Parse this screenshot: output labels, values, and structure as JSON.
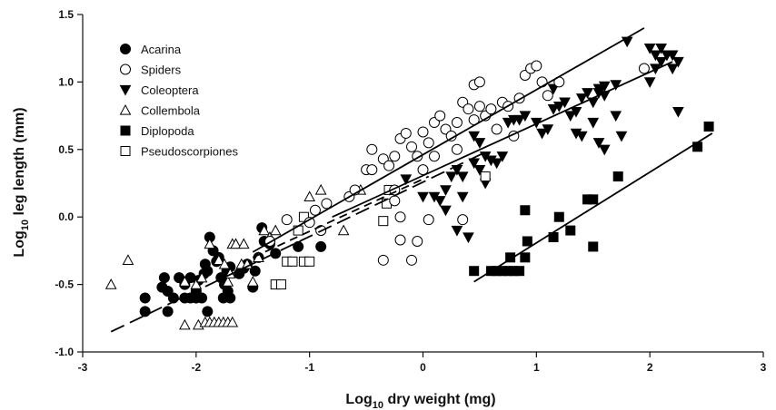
{
  "chart_data": {
    "type": "scatter",
    "title": "",
    "xlabel_main": "Log",
    "xlabel_sub": "10",
    "xlabel_rest": " dry weight (mg)",
    "ylabel_main": "Log",
    "ylabel_sub": "10",
    "ylabel_rest": " leg length (mm)",
    "xlim": [
      -3,
      3
    ],
    "ylim": [
      -1.0,
      1.5
    ],
    "x_ticks": [
      -3,
      -2,
      -1,
      0,
      1,
      2,
      3
    ],
    "x_tick_labels": [
      "-3",
      "-2",
      "-1",
      "0",
      "1",
      "2",
      "3"
    ],
    "y_ticks": [
      -1.0,
      -0.5,
      0.0,
      0.5,
      1.0,
      1.5
    ],
    "y_tick_labels": [
      "-1.0",
      "-0.5",
      "0.0",
      "0.5",
      "1.0",
      "1.5"
    ],
    "grid": false,
    "legend_position": "top-left",
    "series": [
      {
        "name": "Acarina",
        "marker": "filled-circle",
        "points": [
          [
            -2.45,
            -0.6
          ],
          [
            -2.45,
            -0.7
          ],
          [
            -2.3,
            -0.52
          ],
          [
            -2.28,
            -0.45
          ],
          [
            -2.25,
            -0.55
          ],
          [
            -2.25,
            -0.7
          ],
          [
            -2.2,
            -0.6
          ],
          [
            -2.15,
            -0.45
          ],
          [
            -2.1,
            -0.5
          ],
          [
            -2.1,
            -0.6
          ],
          [
            -2.05,
            -0.45
          ],
          [
            -2.0,
            -0.55
          ],
          [
            -1.98,
            -0.47
          ],
          [
            -1.95,
            -0.6
          ],
          [
            -1.93,
            -0.42
          ],
          [
            -1.92,
            -0.35
          ],
          [
            -1.9,
            -0.4
          ],
          [
            -1.88,
            -0.15
          ],
          [
            -1.85,
            -0.25
          ],
          [
            -1.82,
            -0.33
          ],
          [
            -1.8,
            -0.3
          ],
          [
            -1.78,
            -0.45
          ],
          [
            -1.76,
            -0.6
          ],
          [
            -1.75,
            -0.5
          ],
          [
            -1.73,
            -0.4
          ],
          [
            -1.72,
            -0.55
          ],
          [
            -1.7,
            -0.37
          ],
          [
            -1.7,
            -0.6
          ],
          [
            -1.9,
            -0.7
          ],
          [
            -2.0,
            -0.6
          ],
          [
            -2.05,
            -0.6
          ],
          [
            -1.62,
            -0.42
          ],
          [
            -1.58,
            -0.38
          ],
          [
            -1.55,
            -0.35
          ],
          [
            -1.5,
            -0.52
          ],
          [
            -1.48,
            -0.4
          ],
          [
            -1.45,
            -0.3
          ],
          [
            -1.42,
            -0.08
          ],
          [
            -1.4,
            -0.18
          ],
          [
            -1.35,
            -0.2
          ],
          [
            -1.3,
            -0.27
          ],
          [
            -1.1,
            -0.22
          ],
          [
            -0.9,
            -0.22
          ]
        ]
      },
      {
        "name": "Spiders",
        "marker": "open-circle",
        "points": [
          [
            -1.35,
            -0.18
          ],
          [
            -1.2,
            -0.02
          ],
          [
            -1.0,
            -0.04
          ],
          [
            -0.95,
            0.05
          ],
          [
            -0.9,
            -0.1
          ],
          [
            -0.85,
            0.1
          ],
          [
            -0.65,
            0.15
          ],
          [
            -0.6,
            0.2
          ],
          [
            -0.5,
            0.35
          ],
          [
            -0.45,
            0.35
          ],
          [
            -0.45,
            0.5
          ],
          [
            -0.35,
            0.43
          ],
          [
            -0.3,
            0.38
          ],
          [
            -0.25,
            0.45
          ],
          [
            -0.2,
            0.58
          ],
          [
            -0.15,
            0.62
          ],
          [
            -0.1,
            0.52
          ],
          [
            -0.05,
            0.45
          ],
          [
            0.0,
            0.63
          ],
          [
            0.05,
            0.55
          ],
          [
            0.1,
            0.7
          ],
          [
            0.15,
            0.75
          ],
          [
            0.2,
            0.65
          ],
          [
            0.25,
            0.6
          ],
          [
            0.3,
            0.7
          ],
          [
            0.35,
            0.85
          ],
          [
            0.4,
            0.8
          ],
          [
            0.45,
            0.72
          ],
          [
            0.5,
            0.82
          ],
          [
            0.55,
            0.75
          ],
          [
            0.45,
            0.98
          ],
          [
            0.5,
            1.0
          ],
          [
            0.6,
            0.8
          ],
          [
            0.65,
            0.65
          ],
          [
            0.7,
            0.85
          ],
          [
            0.75,
            0.82
          ],
          [
            0.8,
            0.6
          ],
          [
            0.85,
            0.88
          ],
          [
            0.9,
            1.05
          ],
          [
            0.95,
            1.1
          ],
          [
            1.0,
            1.12
          ],
          [
            1.05,
            1.0
          ],
          [
            1.1,
            0.9
          ],
          [
            1.2,
            1.0
          ],
          [
            1.95,
            1.1
          ],
          [
            -0.35,
            -0.32
          ],
          [
            -0.2,
            -0.17
          ],
          [
            -0.1,
            -0.32
          ],
          [
            -0.05,
            -0.18
          ],
          [
            0.05,
            -0.02
          ],
          [
            0.35,
            -0.02
          ],
          [
            0.0,
            0.35
          ],
          [
            -0.25,
            0.12
          ],
          [
            -0.2,
            0.0
          ],
          [
            -0.25,
            0.2
          ],
          [
            0.1,
            0.45
          ],
          [
            0.3,
            0.5
          ]
        ]
      },
      {
        "name": "Coleoptera",
        "marker": "filled-triangle-down",
        "points": [
          [
            -0.15,
            0.28
          ],
          [
            0.0,
            0.15
          ],
          [
            0.15,
            0.12
          ],
          [
            0.2,
            0.05
          ],
          [
            0.25,
            0.3
          ],
          [
            0.3,
            0.35
          ],
          [
            0.35,
            0.15
          ],
          [
            0.4,
            -0.15
          ],
          [
            0.45,
            0.6
          ],
          [
            0.5,
            0.55
          ],
          [
            0.55,
            0.45
          ],
          [
            0.6,
            0.42
          ],
          [
            0.65,
            0.4
          ],
          [
            0.7,
            0.45
          ],
          [
            0.75,
            0.7
          ],
          [
            0.8,
            0.72
          ],
          [
            0.85,
            0.72
          ],
          [
            0.9,
            0.75
          ],
          [
            1.0,
            0.7
          ],
          [
            1.05,
            0.62
          ],
          [
            1.1,
            0.65
          ],
          [
            1.15,
            0.8
          ],
          [
            1.2,
            0.82
          ],
          [
            1.25,
            0.85
          ],
          [
            1.3,
            0.75
          ],
          [
            1.35,
            0.78
          ],
          [
            1.4,
            0.88
          ],
          [
            1.45,
            0.92
          ],
          [
            1.5,
            0.85
          ],
          [
            1.55,
            0.92
          ],
          [
            1.6,
            0.9
          ],
          [
            1.35,
            0.62
          ],
          [
            1.4,
            0.6
          ],
          [
            1.5,
            0.7
          ],
          [
            1.55,
            0.55
          ],
          [
            1.6,
            0.5
          ],
          [
            1.7,
            0.75
          ],
          [
            1.75,
            0.6
          ],
          [
            1.55,
            0.95
          ],
          [
            1.6,
            0.97
          ],
          [
            1.7,
            0.98
          ],
          [
            1.8,
            1.3
          ],
          [
            2.0,
            1.0
          ],
          [
            2.05,
            1.1
          ],
          [
            2.1,
            1.15
          ],
          [
            2.15,
            1.2
          ],
          [
            2.2,
            1.2
          ],
          [
            2.25,
            1.15
          ],
          [
            2.0,
            1.25
          ],
          [
            2.05,
            1.2
          ],
          [
            2.1,
            1.25
          ],
          [
            2.15,
            1.2
          ],
          [
            2.2,
            1.1
          ],
          [
            2.25,
            0.78
          ],
          [
            1.15,
            0.95
          ],
          [
            0.1,
            0.15
          ],
          [
            0.2,
            0.2
          ],
          [
            0.35,
            0.3
          ],
          [
            0.5,
            0.35
          ],
          [
            0.55,
            0.25
          ],
          [
            0.45,
            0.4
          ],
          [
            0.3,
            -0.1
          ]
        ]
      },
      {
        "name": "Collembola",
        "marker": "open-triangle-up",
        "points": [
          [
            -2.75,
            -0.5
          ],
          [
            -2.6,
            -0.32
          ],
          [
            -2.1,
            -0.48
          ],
          [
            -2.0,
            -0.5
          ],
          [
            -1.95,
            -0.45
          ],
          [
            -1.88,
            -0.2
          ],
          [
            -1.8,
            -0.32
          ],
          [
            -1.75,
            -0.35
          ],
          [
            -1.72,
            -0.48
          ],
          [
            -1.7,
            -0.42
          ],
          [
            -1.68,
            -0.2
          ],
          [
            -1.65,
            -0.2
          ],
          [
            -1.6,
            -0.35
          ],
          [
            -1.58,
            -0.2
          ],
          [
            -1.55,
            -0.35
          ],
          [
            -1.5,
            -0.48
          ],
          [
            -1.45,
            -0.3
          ],
          [
            -1.4,
            -0.1
          ],
          [
            -1.35,
            -0.15
          ],
          [
            -1.3,
            -0.1
          ],
          [
            -1.0,
            0.15
          ],
          [
            -0.9,
            0.2
          ],
          [
            -0.7,
            -0.1
          ],
          [
            -0.55,
            0.2
          ],
          [
            -2.1,
            -0.8
          ],
          [
            -1.98,
            -0.8
          ],
          [
            -1.92,
            -0.78
          ],
          [
            -1.88,
            -0.78
          ],
          [
            -1.84,
            -0.78
          ],
          [
            -1.8,
            -0.78
          ],
          [
            -1.76,
            -0.78
          ],
          [
            -1.72,
            -0.78
          ],
          [
            -1.68,
            -0.78
          ]
        ]
      },
      {
        "name": "Diplopoda",
        "marker": "filled-square",
        "points": [
          [
            0.45,
            -0.4
          ],
          [
            0.6,
            -0.4
          ],
          [
            0.65,
            -0.4
          ],
          [
            0.7,
            -0.4
          ],
          [
            0.75,
            -0.4
          ],
          [
            0.8,
            -0.4
          ],
          [
            0.85,
            -0.4
          ],
          [
            0.77,
            -0.3
          ],
          [
            0.9,
            -0.3
          ],
          [
            0.92,
            -0.18
          ],
          [
            0.9,
            0.05
          ],
          [
            1.15,
            -0.15
          ],
          [
            1.3,
            -0.1
          ],
          [
            1.2,
            0.0
          ],
          [
            1.45,
            0.13
          ],
          [
            1.5,
            0.13
          ],
          [
            1.5,
            -0.22
          ],
          [
            1.72,
            0.3
          ],
          [
            2.42,
            0.52
          ],
          [
            2.52,
            0.67
          ]
        ]
      },
      {
        "name": "Pseudoscorpiones",
        "marker": "open-square",
        "points": [
          [
            -1.3,
            -0.5
          ],
          [
            -1.25,
            -0.5
          ],
          [
            -1.2,
            -0.33
          ],
          [
            -1.15,
            -0.33
          ],
          [
            -1.1,
            -0.1
          ],
          [
            -1.05,
            0.0
          ],
          [
            -1.05,
            -0.33
          ],
          [
            -1.0,
            -0.33
          ],
          [
            -0.35,
            -0.03
          ],
          [
            -0.32,
            0.1
          ],
          [
            -0.3,
            0.2
          ],
          [
            0.55,
            0.3
          ]
        ]
      }
    ],
    "regression_lines": [
      {
        "style": "solid",
        "x": [
          -1.5,
          1.95
        ],
        "y": [
          -0.26,
          1.4
        ]
      },
      {
        "style": "solid",
        "x": [
          -0.8,
          2.2
        ],
        "y": [
          0.0,
          1.15
        ]
      },
      {
        "style": "long-dash",
        "x": [
          -2.75,
          0.55
        ],
        "y": [
          -0.85,
          0.48
        ]
      },
      {
        "style": "dash",
        "x": [
          -1.5,
          0.05
        ],
        "y": [
          -0.3,
          0.3
        ]
      },
      {
        "style": "solid",
        "x": [
          0.45,
          2.55
        ],
        "y": [
          -0.48,
          0.62
        ]
      }
    ]
  }
}
